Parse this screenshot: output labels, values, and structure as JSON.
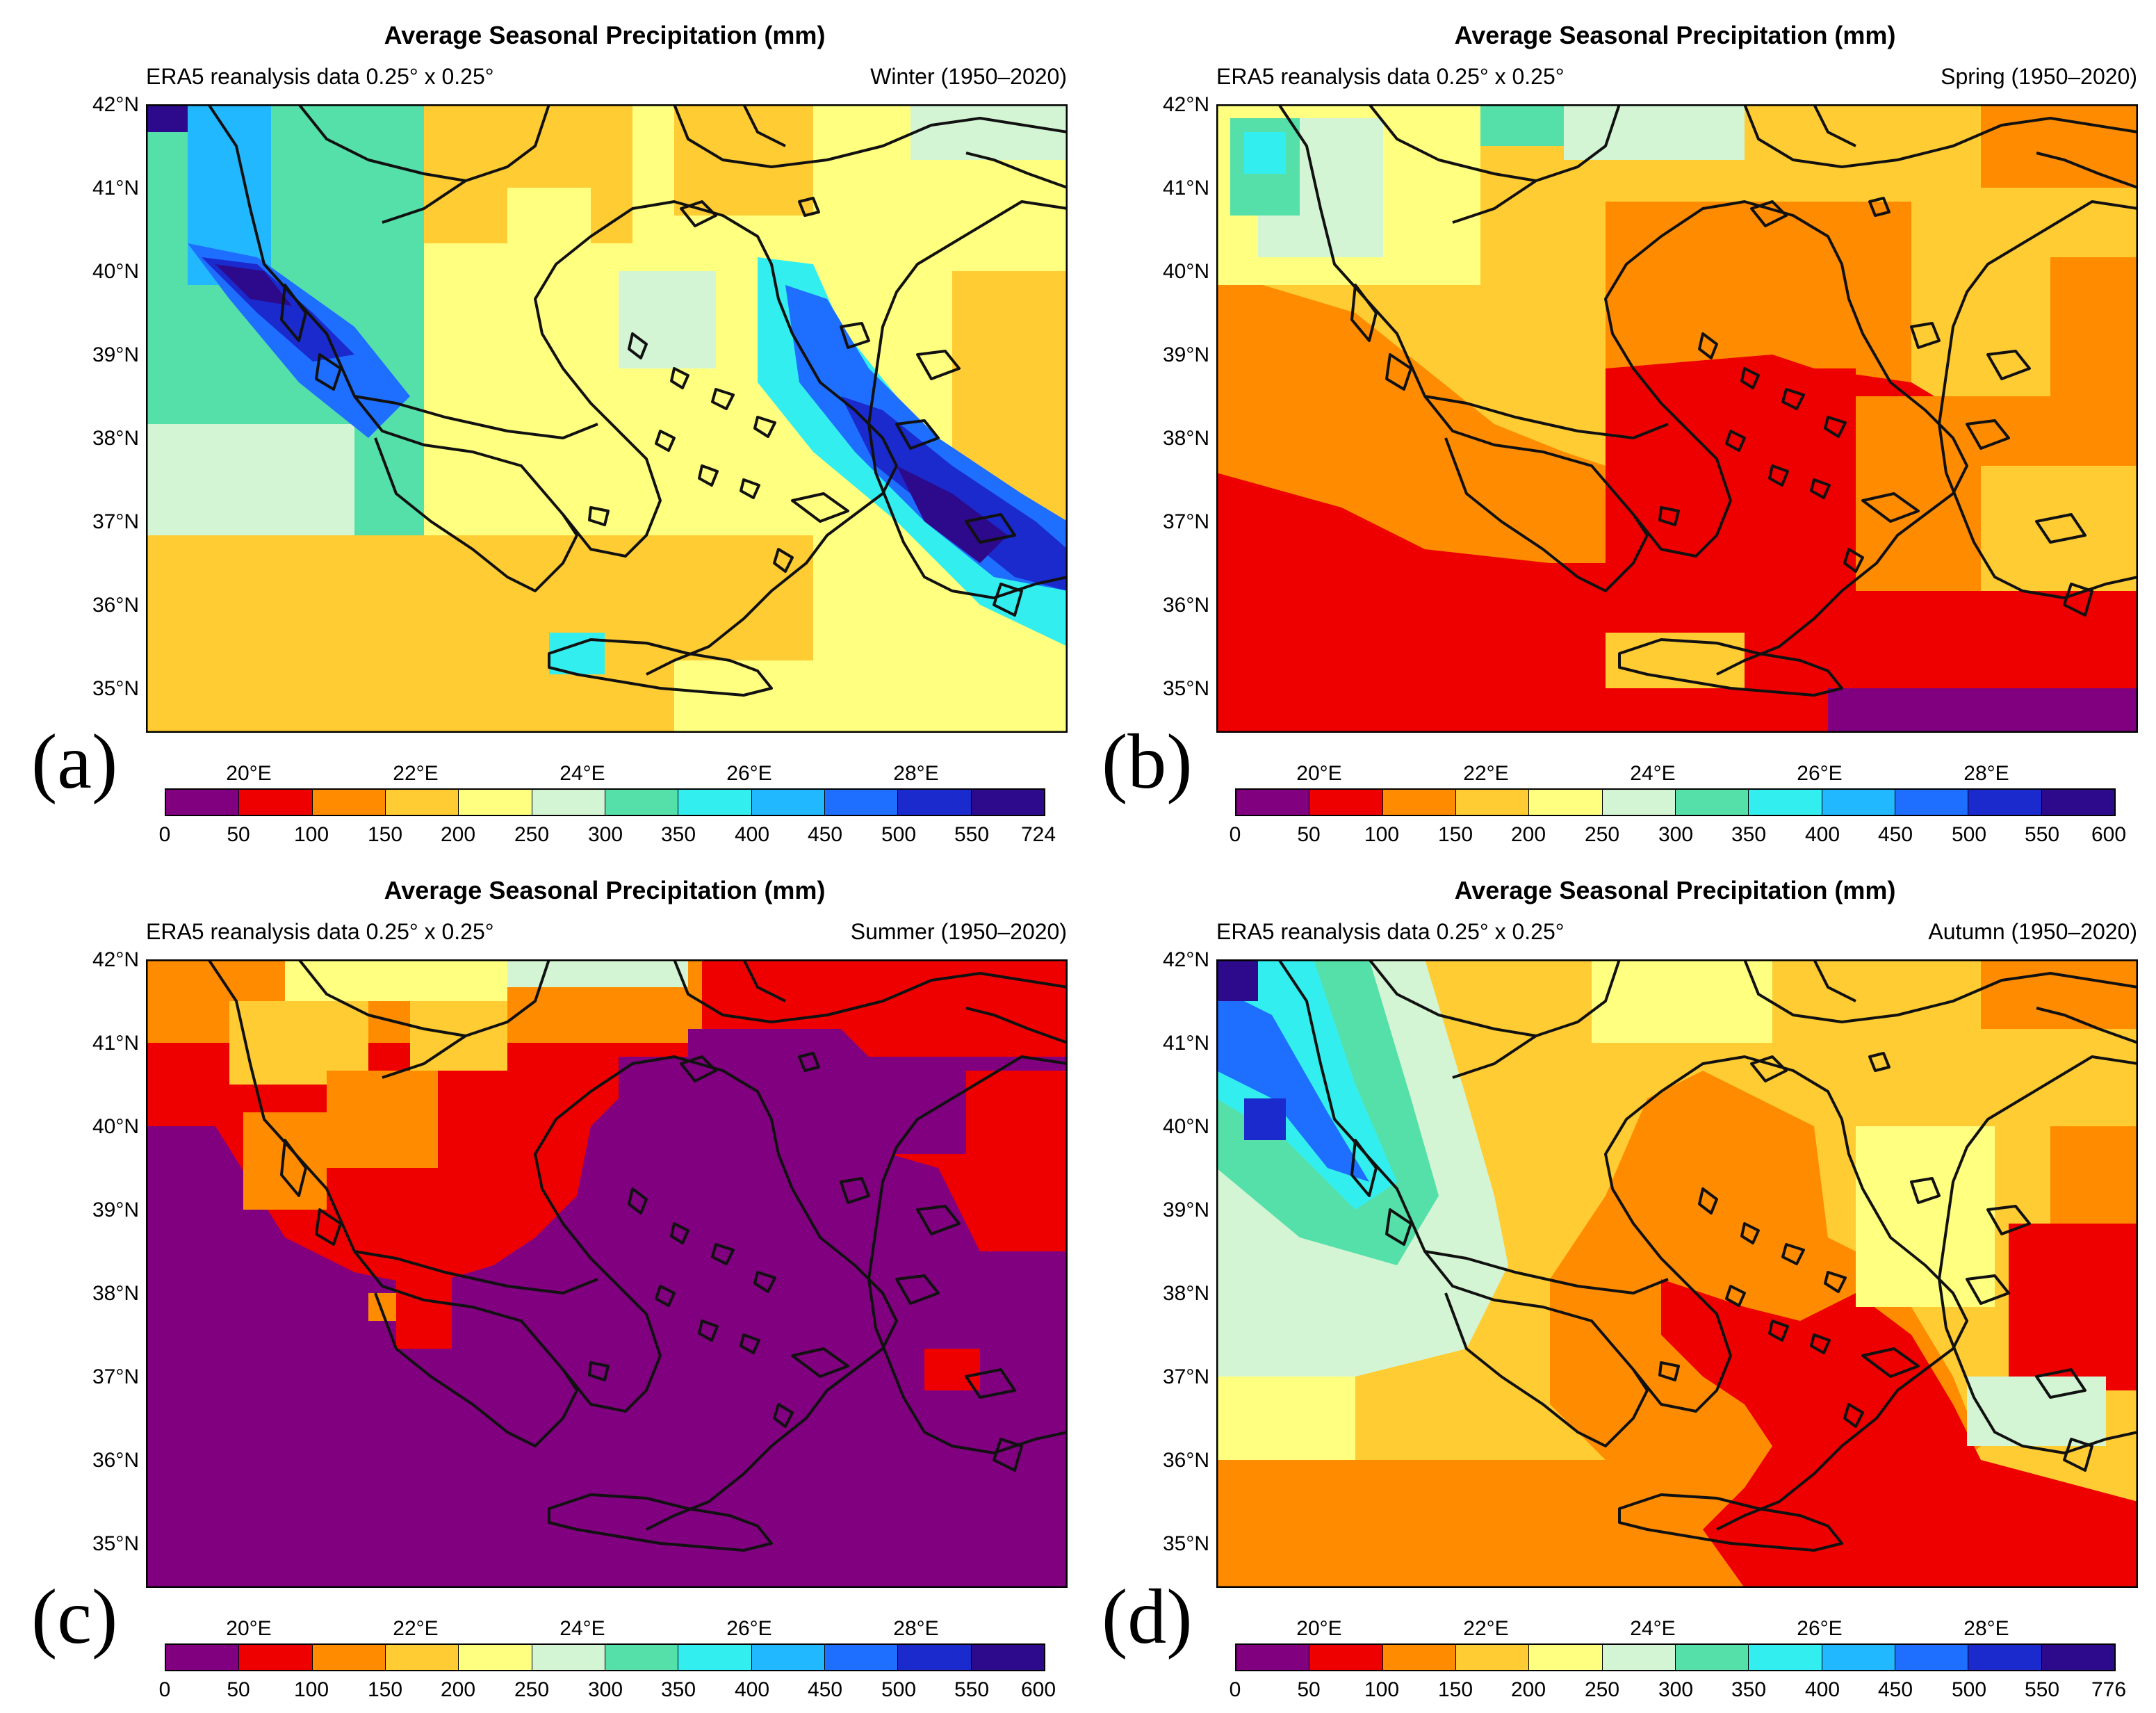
{
  "figure": {
    "panels": [
      {
        "label": "(a)",
        "title": "Average Seasonal Precipitation (mm)",
        "dataset": "ERA5 reanalysis data 0.25° x 0.25°",
        "season": "Winter (1950–2020)",
        "colorbar_labels": [
          "0",
          "50",
          "100",
          "150",
          "200",
          "250",
          "300",
          "350",
          "400",
          "450",
          "500",
          "550",
          "724"
        ]
      },
      {
        "label": "(b)",
        "title": "Average Seasonal Precipitation (mm)",
        "dataset": "ERA5 reanalysis data 0.25° x 0.25°",
        "season": "Spring (1950–2020)",
        "colorbar_labels": [
          "0",
          "50",
          "100",
          "150",
          "200",
          "250",
          "300",
          "350",
          "400",
          "450",
          "500",
          "550",
          "600"
        ]
      },
      {
        "label": "(c)",
        "title": "Average Seasonal Precipitation (mm)",
        "dataset": "ERA5 reanalysis data 0.25° x 0.25°",
        "season": "Summer (1950–2020)",
        "colorbar_labels": [
          "0",
          "50",
          "100",
          "150",
          "200",
          "250",
          "300",
          "350",
          "400",
          "450",
          "500",
          "550",
          "600"
        ]
      },
      {
        "label": "(d)",
        "title": "Average Seasonal Precipitation (mm)",
        "dataset": "ERA5 reanalysis data 0.25° x 0.25°",
        "season": "Autumn (1950–2020)",
        "colorbar_labels": [
          "0",
          "50",
          "100",
          "150",
          "200",
          "250",
          "300",
          "350",
          "400",
          "450",
          "500",
          "550",
          "776"
        ]
      }
    ],
    "lat_labels": [
      "42°N",
      "41°N",
      "40°N",
      "39°N",
      "38°N",
      "37°N",
      "36°N",
      "35°N"
    ],
    "lon_labels": [
      "20°E",
      "22°E",
      "24°E",
      "26°E",
      "28°E"
    ],
    "colorbar_colors": [
      "#800080",
      "#ee0000",
      "#ff8c00",
      "#ffcc33",
      "#ffff80",
      "#d4f5d4",
      "#55e0aa",
      "#33eeee",
      "#22b8ff",
      "#1e6eff",
      "#1a2acd",
      "#2d0a8c"
    ]
  }
}
